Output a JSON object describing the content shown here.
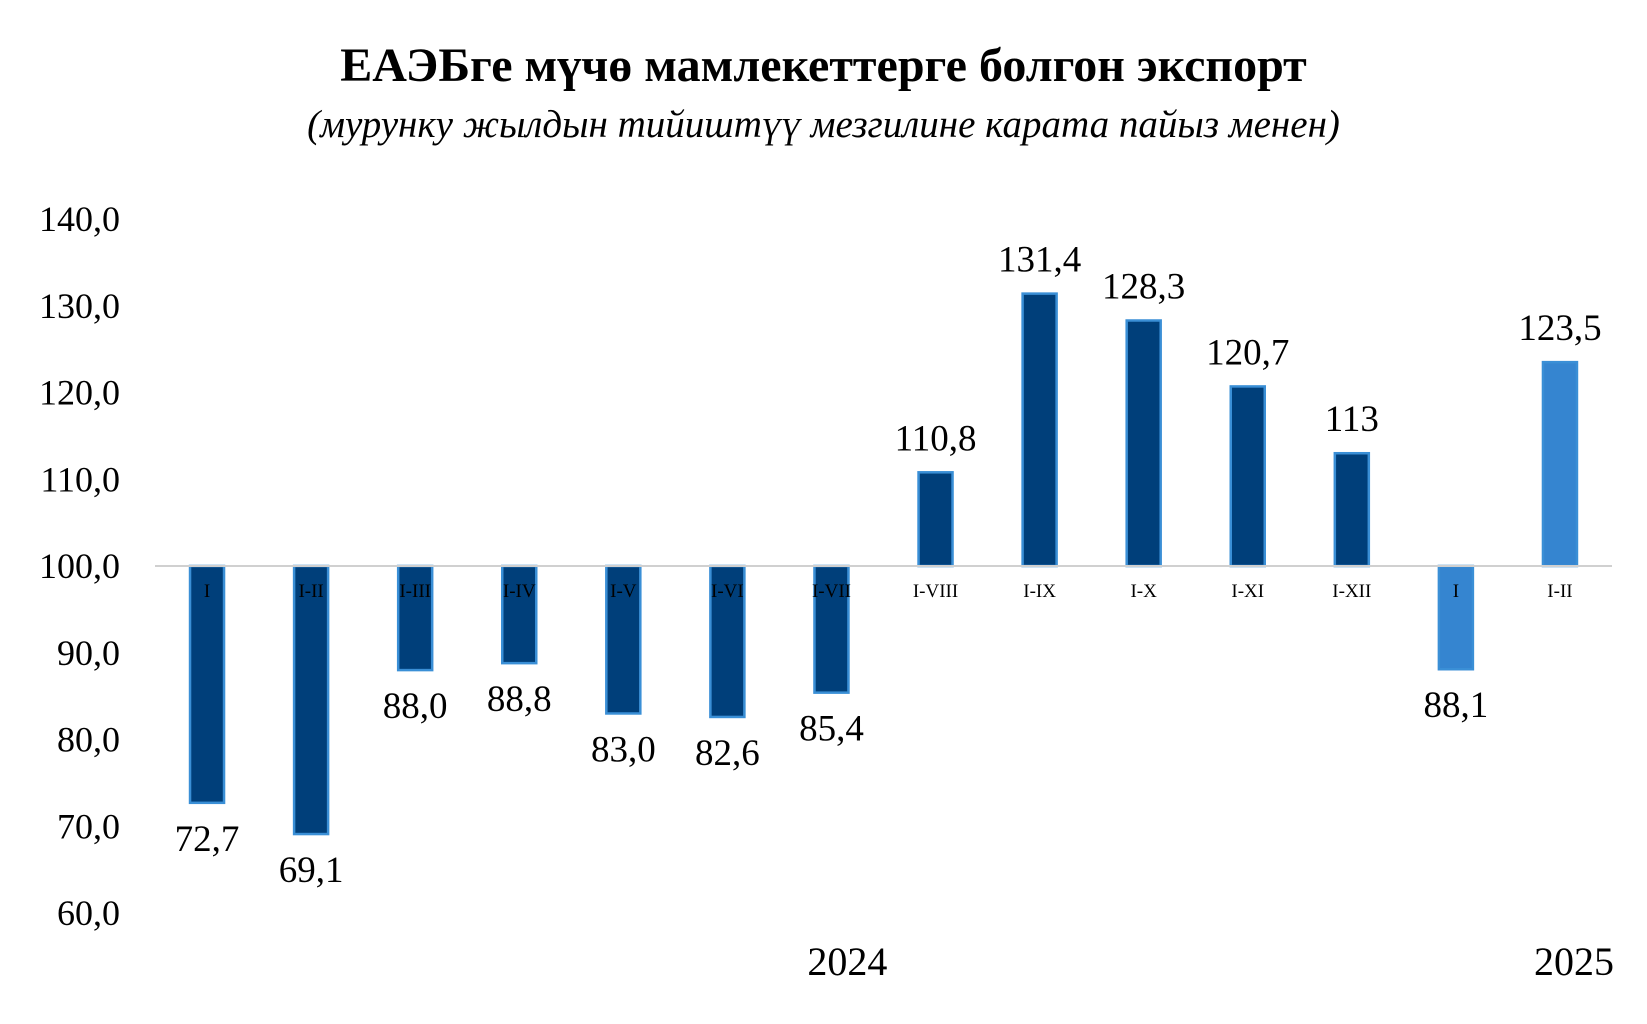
{
  "chart_data": {
    "type": "bar",
    "title": "ЕАЭБге мүчө мамлекеттерге болгон экспорт",
    "subtitle": "(мурунку жылдын тийиштүү  мезгилине карата пайыз менен)",
    "baseline": 100,
    "ylim": [
      60,
      140
    ],
    "yticks": [
      "60,0",
      "70,0",
      "80,0",
      "90,0",
      "100,0",
      "110,0",
      "120,0",
      "130,0",
      "140,0"
    ],
    "ytick_values": [
      60,
      70,
      80,
      90,
      100,
      110,
      120,
      130,
      140
    ],
    "categories": [
      "I",
      "I-II",
      "I-III",
      "I-IV",
      "I-V",
      "I-VI",
      "I-VII",
      "I-VIII",
      "I-IX",
      "I-X",
      "I-XI",
      "I-XII",
      "I",
      "I-II"
    ],
    "values": [
      72.7,
      69.1,
      88.0,
      88.8,
      83.0,
      82.6,
      85.4,
      110.8,
      131.4,
      128.3,
      120.7,
      113,
      88.1,
      123.5
    ],
    "value_labels": [
      "72,7",
      "69,1",
      "88,0",
      "88,8",
      "83,0",
      "82,6",
      "85,4",
      "110,8",
      "131,4",
      "128,3",
      "120,7",
      "113",
      "88,1",
      "123,5"
    ],
    "years": [
      {
        "label": "2024",
        "start": 0,
        "end": 11
      },
      {
        "label": "2025",
        "start": 12,
        "end": 13
      }
    ],
    "colors": {
      "2024": "#003f7a",
      "2025": "#3585d0",
      "bar_border": "#3a8fd6",
      "axis": "#d0d0d0"
    },
    "grid": false,
    "legend": "none"
  }
}
